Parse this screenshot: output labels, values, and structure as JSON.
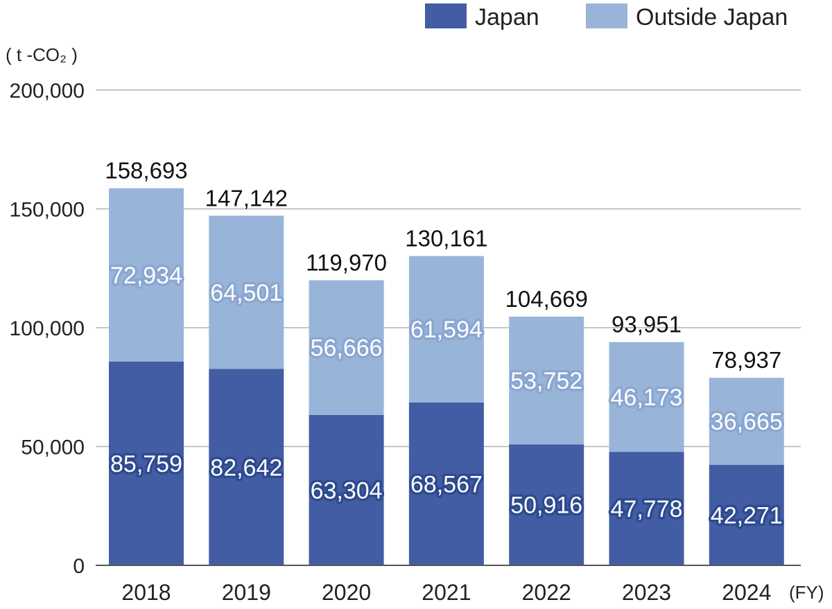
{
  "chart_data": {
    "type": "bar",
    "stacked": true,
    "unit_label": "( t -CO₂ )",
    "x_unit_label": "(FY)",
    "categories": [
      "2018",
      "2019",
      "2020",
      "2021",
      "2022",
      "2023",
      "2024"
    ],
    "series": [
      {
        "name": "Japan",
        "color": "#425da3",
        "values": [
          85759,
          82642,
          63304,
          68567,
          50916,
          47778,
          42271
        ],
        "labels": [
          "85,759",
          "82,642",
          "63,304",
          "68,567",
          "50,916",
          "47,778",
          "42,271"
        ]
      },
      {
        "name": "Outside Japan",
        "color": "#98b5d9",
        "values": [
          72934,
          64501,
          56666,
          61594,
          53752,
          46173,
          36665
        ],
        "labels": [
          "72,934",
          "64,501",
          "56,666",
          "61,594",
          "53,752",
          "46,173",
          "36,665"
        ]
      }
    ],
    "totals": [
      158693,
      147142,
      119970,
      130161,
      104669,
      93951,
      78937
    ],
    "total_labels": [
      "158,693",
      "147,142",
      "119,970",
      "130,161",
      "104,669",
      "93,951",
      "78,937"
    ],
    "ylim": [
      0,
      200000
    ],
    "yticks": [
      0,
      50000,
      100000,
      150000,
      200000
    ],
    "ytick_labels": [
      "0",
      "50,000",
      "100,000",
      "150,000",
      "200,000"
    ],
    "grid": true,
    "legend_position": "top-right"
  }
}
